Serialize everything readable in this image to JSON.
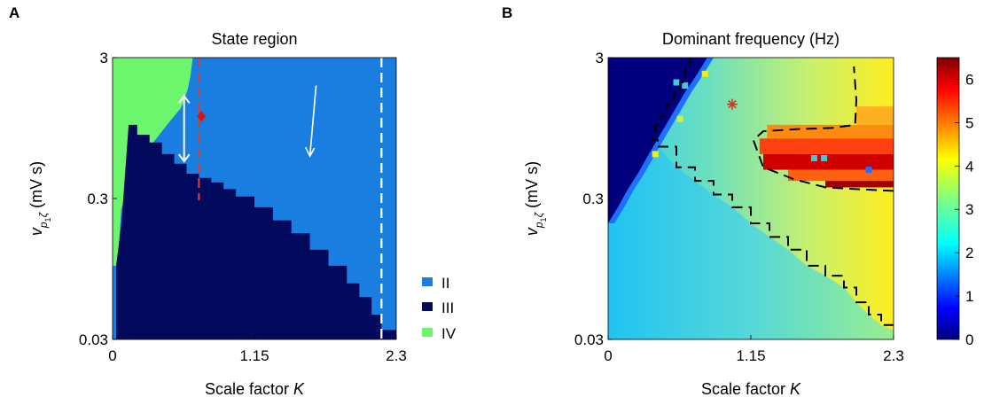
{
  "figure": {
    "panel_a_letter": "A",
    "panel_b_letter": "B"
  },
  "chart_data": [
    {
      "type": "heatmap",
      "title": "State region",
      "xlabel_text": "Scale factor",
      "xlabel_var": "K",
      "ylabel_main": "v",
      "ylabel_sub1": "p",
      "ylabel_sub1_sub": "1",
      "ylabel_sub2": "ζ",
      "ylabel_unit": " (mV s)",
      "xlim": [
        0,
        2.3
      ],
      "ylim": [
        0.03,
        3
      ],
      "y_scale": "log",
      "x_ticks": [
        0,
        1.15,
        2.3
      ],
      "x_tick_labels": [
        "0",
        "1.15",
        "2.3"
      ],
      "y_ticks": [
        0.03,
        0.3,
        3
      ],
      "y_tick_labels": [
        "0.03",
        "0.3",
        "3"
      ],
      "legend": [
        {
          "label": "II",
          "color": "#1a7ee0"
        },
        {
          "label": "III",
          "color": "#030a5e"
        },
        {
          "label": "IV",
          "color": "#6ef56e"
        }
      ],
      "boundary_IV_II": {
        "x": [
          0.65,
          0.63,
          0.61,
          0.58,
          0.55,
          0.48,
          0.4,
          0.33,
          0.27,
          0.2,
          0.13,
          0.07,
          0.04
        ],
        "y": [
          3,
          2.2,
          1.8,
          1.5,
          1.3,
          1.1,
          0.9,
          0.75,
          0.6,
          0.48,
          0.38,
          0.25,
          0.1
        ]
      },
      "boundary_II_III": {
        "x": [
          0.13,
          0.2,
          0.3,
          0.4,
          0.5,
          0.6,
          0.7,
          0.8,
          0.9,
          1.0,
          1.15,
          1.3,
          1.45,
          1.6,
          1.75,
          1.9,
          2.0,
          2.1,
          2.18,
          2.3
        ],
        "y": [
          1.0,
          0.85,
          0.75,
          0.62,
          0.53,
          0.45,
          0.42,
          0.39,
          0.35,
          0.31,
          0.26,
          0.21,
          0.17,
          0.13,
          0.1,
          0.075,
          0.06,
          0.045,
          0.035,
          0.03
        ]
      },
      "red_dashed_line_x": 0.7,
      "white_dashed_line_x": 2.18,
      "red_marker": {
        "x": 0.72,
        "y": 1.15
      },
      "white_double_arrow": {
        "x": 0.58,
        "y_top": 1.6,
        "y_bottom": 0.55
      },
      "white_arrow": {
        "x": 1.65,
        "x_end": 1.6,
        "y_start": 1.9,
        "y_end": 0.6
      }
    },
    {
      "type": "heatmap",
      "title": "Dominant frequency (Hz)",
      "xlabel_text": "Scale factor",
      "xlabel_var": "K",
      "ylabel_main": "v",
      "ylabel_sub1": "p",
      "ylabel_sub1_sub": "1",
      "ylabel_sub2": "ζ",
      "ylabel_unit": " (mV s)",
      "xlim": [
        0,
        2.3
      ],
      "ylim": [
        0.03,
        3
      ],
      "y_scale": "log",
      "x_ticks": [
        0,
        1.15,
        2.3
      ],
      "x_tick_labels": [
        "0",
        "1.15",
        "2.3"
      ],
      "y_ticks": [
        0.03,
        0.3,
        3
      ],
      "y_tick_labels": [
        "0.03",
        "0.3",
        "3"
      ],
      "colorbar": {
        "range": [
          0,
          6.5
        ],
        "ticks": [
          0,
          1,
          2,
          3,
          4,
          5,
          6
        ],
        "tick_labels": [
          "0",
          "1",
          "2",
          "3",
          "4",
          "5",
          "6"
        ]
      },
      "red_star": {
        "x": 1.0,
        "y": 1.4
      },
      "dashed_contour_upper": {
        "x": [
          0.68,
          0.66,
          0.62,
          0.58,
          0.53,
          0.47,
          0.42,
          0.38,
          0.36,
          0.4
        ],
        "y": [
          3,
          2.5,
          2.0,
          1.7,
          1.4,
          1.15,
          1.0,
          0.9,
          0.78,
          0.7
        ]
      },
      "dashed_contour_lower": {
        "x": [
          0.4,
          0.55,
          0.7,
          0.85,
          1.0,
          1.15,
          1.3,
          1.45,
          1.6,
          1.75,
          1.9,
          2.0,
          2.1,
          2.2,
          2.3
        ],
        "y": [
          0.7,
          0.5,
          0.4,
          0.32,
          0.26,
          0.2,
          0.16,
          0.13,
          0.1,
          0.085,
          0.07,
          0.055,
          0.045,
          0.038,
          0.035
        ]
      },
      "dashed_contour_tongue": {
        "x": [
          2.3,
          2.0,
          1.75,
          1.5,
          1.25,
          1.17,
          1.25,
          1.5,
          1.8,
          1.99,
          2.0,
          1.98
        ],
        "y": [
          0.34,
          0.35,
          0.36,
          0.41,
          0.5,
          0.78,
          0.9,
          0.93,
          0.95,
          1.0,
          1.5,
          2.6
        ]
      }
    }
  ]
}
